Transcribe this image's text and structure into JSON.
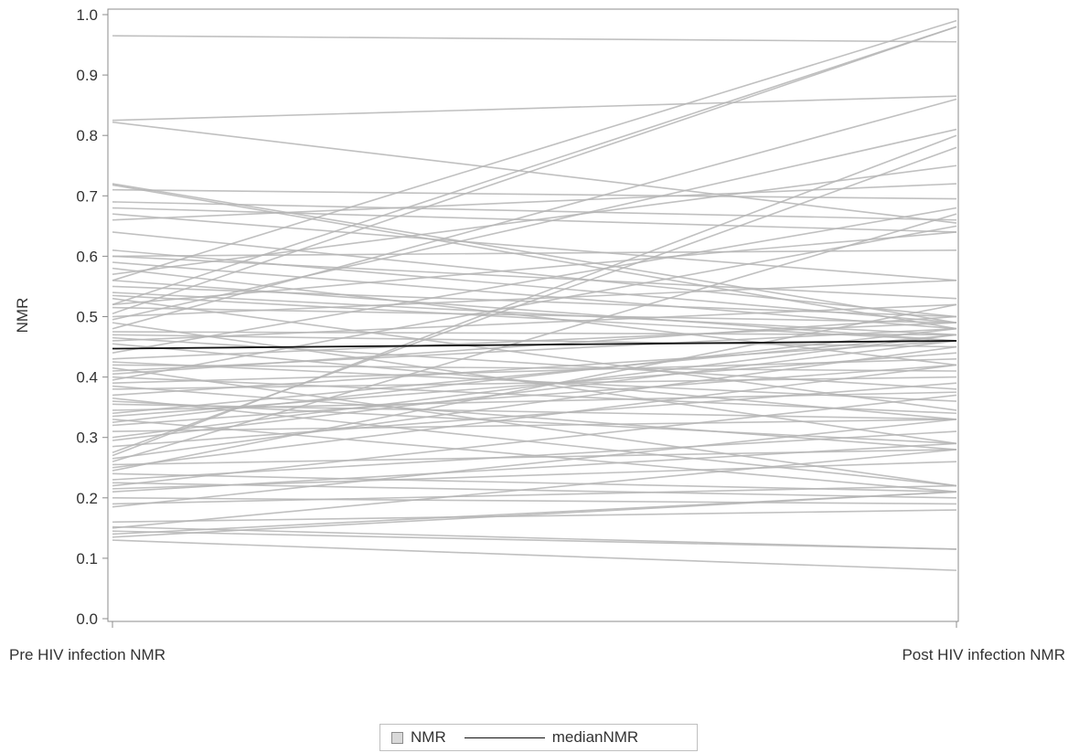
{
  "chart_data": {
    "type": "line",
    "title": "",
    "xlabel": "",
    "ylabel": "NMR",
    "categories": [
      "Pre HIV infection NMR",
      "Post HIV infection NMR"
    ],
    "ylim": [
      0.0,
      1.0
    ],
    "yticks": [
      "0.0",
      "0.1",
      "0.2",
      "0.3",
      "0.4",
      "0.5",
      "0.6",
      "0.7",
      "0.8",
      "0.9",
      "1.0"
    ],
    "grid": false,
    "legend_position": "bottom-center",
    "legend": {
      "patch_label": "NMR",
      "line_label": "medianNMR"
    },
    "colors": {
      "subjects": "#b5b5b5",
      "median": "#111111",
      "axis": "#8c8c8c"
    },
    "median": {
      "name": "medianNMR",
      "values": [
        0.447,
        0.46
      ]
    },
    "subjects": [
      [
        0.965,
        0.955
      ],
      [
        0.825,
        0.865
      ],
      [
        0.822,
        0.655
      ],
      [
        0.72,
        0.49
      ],
      [
        0.718,
        0.48
      ],
      [
        0.71,
        0.695
      ],
      [
        0.68,
        0.64
      ],
      [
        0.67,
        0.56
      ],
      [
        0.66,
        0.72
      ],
      [
        0.64,
        0.5
      ],
      [
        0.61,
        0.49
      ],
      [
        0.6,
        0.53
      ],
      [
        0.59,
        0.48
      ],
      [
        0.58,
        0.42
      ],
      [
        0.57,
        0.75
      ],
      [
        0.56,
        0.99
      ],
      [
        0.55,
        0.5
      ],
      [
        0.54,
        0.47
      ],
      [
        0.535,
        0.46
      ],
      [
        0.53,
        0.345
      ],
      [
        0.52,
        0.98
      ],
      [
        0.515,
        0.49
      ],
      [
        0.505,
        0.98
      ],
      [
        0.5,
        0.56
      ],
      [
        0.495,
        0.81
      ],
      [
        0.49,
        0.29
      ],
      [
        0.48,
        0.86
      ],
      [
        0.475,
        0.47
      ],
      [
        0.47,
        0.45
      ],
      [
        0.465,
        0.38
      ],
      [
        0.46,
        0.52
      ],
      [
        0.455,
        0.33
      ],
      [
        0.44,
        0.68
      ],
      [
        0.43,
        0.49
      ],
      [
        0.425,
        0.36
      ],
      [
        0.42,
        0.41
      ],
      [
        0.415,
        0.22
      ],
      [
        0.41,
        0.48
      ],
      [
        0.405,
        0.5
      ],
      [
        0.4,
        0.34
      ],
      [
        0.395,
        0.65
      ],
      [
        0.39,
        0.43
      ],
      [
        0.385,
        0.28
      ],
      [
        0.38,
        0.4
      ],
      [
        0.37,
        0.46
      ],
      [
        0.365,
        0.22
      ],
      [
        0.36,
        0.29
      ],
      [
        0.355,
        0.33
      ],
      [
        0.345,
        0.375
      ],
      [
        0.34,
        0.47
      ],
      [
        0.335,
        0.44
      ],
      [
        0.33,
        0.21
      ],
      [
        0.325,
        0.48
      ],
      [
        0.32,
        0.42
      ],
      [
        0.31,
        0.33
      ],
      [
        0.3,
        0.47
      ],
      [
        0.295,
        0.46
      ],
      [
        0.285,
        0.39
      ],
      [
        0.275,
        0.78
      ],
      [
        0.27,
        0.8
      ],
      [
        0.265,
        0.45
      ],
      [
        0.26,
        0.67
      ],
      [
        0.255,
        0.28
      ],
      [
        0.25,
        0.42
      ],
      [
        0.245,
        0.52
      ],
      [
        0.24,
        0.21
      ],
      [
        0.23,
        0.31
      ],
      [
        0.225,
        0.2
      ],
      [
        0.22,
        0.37
      ],
      [
        0.215,
        0.26
      ],
      [
        0.21,
        0.29
      ],
      [
        0.2,
        0.19
      ],
      [
        0.19,
        0.22
      ],
      [
        0.185,
        0.33
      ],
      [
        0.16,
        0.18
      ],
      [
        0.152,
        0.115
      ],
      [
        0.15,
        0.28
      ],
      [
        0.145,
        0.115
      ],
      [
        0.14,
        0.21
      ],
      [
        0.135,
        0.21
      ],
      [
        0.13,
        0.08
      ],
      [
        0.56,
        0.46
      ],
      [
        0.6,
        0.61
      ],
      [
        0.69,
        0.66
      ],
      [
        0.52,
        0.64
      ]
    ]
  }
}
